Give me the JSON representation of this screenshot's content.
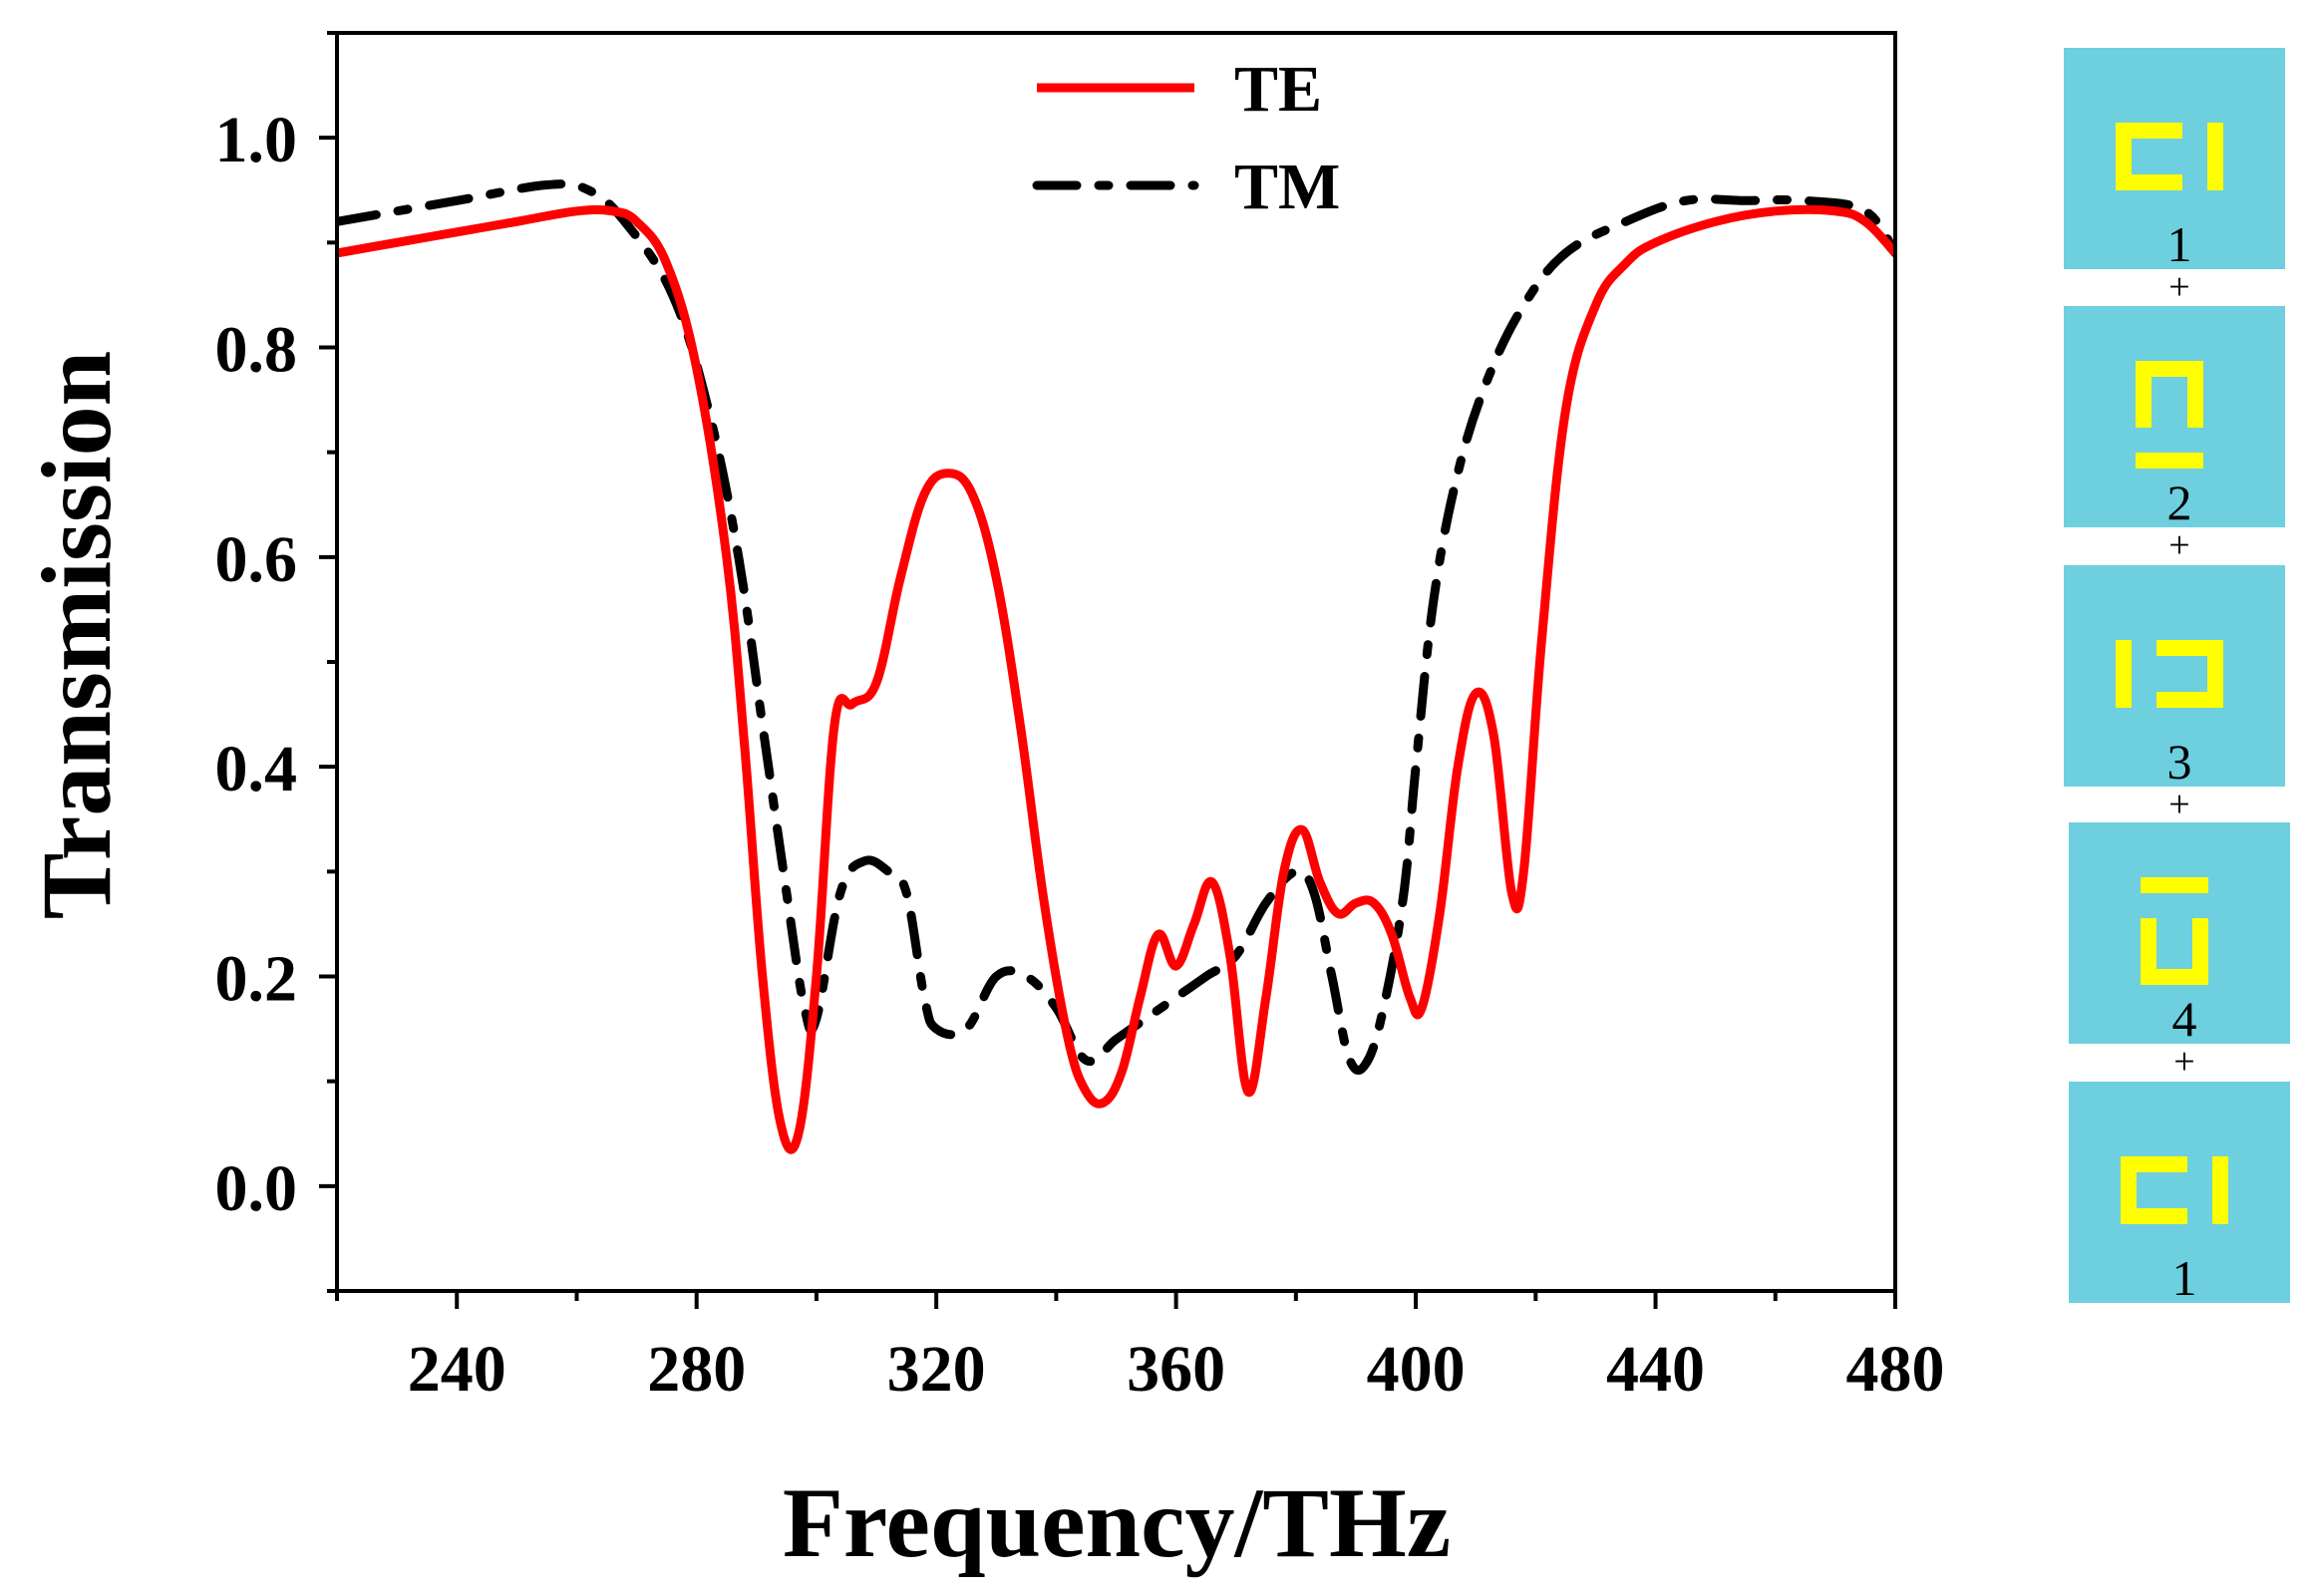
{
  "chart_data": {
    "type": "line",
    "title": "",
    "xlabel": "Frequency/THz",
    "ylabel": "Transmission",
    "xlim": [
      220,
      480
    ],
    "ylim": [
      -0.1,
      1.1
    ],
    "xticks": [
      240,
      280,
      320,
      360,
      400,
      440,
      480
    ],
    "xtick_labels": [
      "240",
      "280",
      "320",
      "360",
      "400",
      "440",
      "480"
    ],
    "yticks": [
      0.0,
      0.2,
      0.4,
      0.6,
      0.8,
      1.0
    ],
    "ytick_labels": [
      "0.0",
      "0.2",
      "0.4",
      "0.6",
      "0.8",
      "1.0"
    ],
    "grid": false,
    "legend": "top-center",
    "series": [
      {
        "name": "TE",
        "style": "solid",
        "color": "#ff0000",
        "x": [
          220,
          230,
          240,
          250,
          260,
          266,
          270,
          275,
          280,
          285,
          288,
          291,
          294,
          297,
          300,
          303,
          306,
          310,
          314,
          318,
          322,
          326,
          330,
          334,
          338,
          342,
          345,
          348,
          351,
          354,
          357,
          360,
          363,
          366,
          369,
          372,
          375,
          378,
          381,
          384,
          387,
          390,
          393,
          396,
          399,
          401,
          404,
          407,
          410,
          413,
          416,
          418,
          421,
          425,
          430,
          435,
          440,
          450,
          460,
          470,
          475,
          480
        ],
        "y": [
          0.89,
          0.9,
          0.91,
          0.92,
          0.93,
          0.93,
          0.92,
          0.88,
          0.78,
          0.6,
          0.42,
          0.2,
          0.06,
          0.05,
          0.2,
          0.44,
          0.46,
          0.48,
          0.58,
          0.66,
          0.68,
          0.66,
          0.58,
          0.44,
          0.27,
          0.14,
          0.09,
          0.08,
          0.11,
          0.18,
          0.24,
          0.21,
          0.25,
          0.29,
          0.22,
          0.09,
          0.18,
          0.3,
          0.34,
          0.29,
          0.26,
          0.27,
          0.27,
          0.24,
          0.18,
          0.17,
          0.26,
          0.4,
          0.47,
          0.43,
          0.28,
          0.3,
          0.52,
          0.74,
          0.84,
          0.88,
          0.9,
          0.92,
          0.93,
          0.93,
          0.92,
          0.89
        ]
      },
      {
        "name": "TM",
        "style": "dash-dot",
        "color": "#000000",
        "x": [
          220,
          240,
          255,
          262,
          268,
          276,
          282,
          287,
          291,
          295,
          298,
          300,
          304,
          308,
          312,
          315,
          318,
          320,
          325,
          330,
          335,
          340,
          345,
          350,
          355,
          360,
          365,
          370,
          375,
          380,
          383,
          386,
          389,
          392,
          395,
          398,
          400,
          403,
          407,
          412,
          418,
          425,
          435,
          445,
          455,
          465,
          475,
          480
        ],
        "y": [
          0.92,
          0.94,
          0.955,
          0.95,
          0.92,
          0.85,
          0.74,
          0.6,
          0.44,
          0.28,
          0.17,
          0.16,
          0.28,
          0.31,
          0.3,
          0.28,
          0.18,
          0.15,
          0.15,
          0.2,
          0.2,
          0.17,
          0.12,
          0.14,
          0.16,
          0.18,
          0.2,
          0.22,
          0.27,
          0.3,
          0.28,
          0.2,
          0.12,
          0.12,
          0.18,
          0.28,
          0.4,
          0.56,
          0.68,
          0.77,
          0.84,
          0.89,
          0.92,
          0.94,
          0.94,
          0.94,
          0.93,
          0.89
        ]
      }
    ]
  },
  "side_panel": {
    "tile_color": "#6ecfde",
    "ring_color": "#ffff00",
    "tiles": [
      {
        "label": "1",
        "variant": "gap-right"
      },
      {
        "label": "2",
        "variant": "gap-bottom"
      },
      {
        "label": "3",
        "variant": "gap-left"
      },
      {
        "label": "4",
        "variant": "gap-top"
      },
      {
        "label": "1",
        "variant": "gap-right"
      }
    ],
    "separator": "+"
  }
}
